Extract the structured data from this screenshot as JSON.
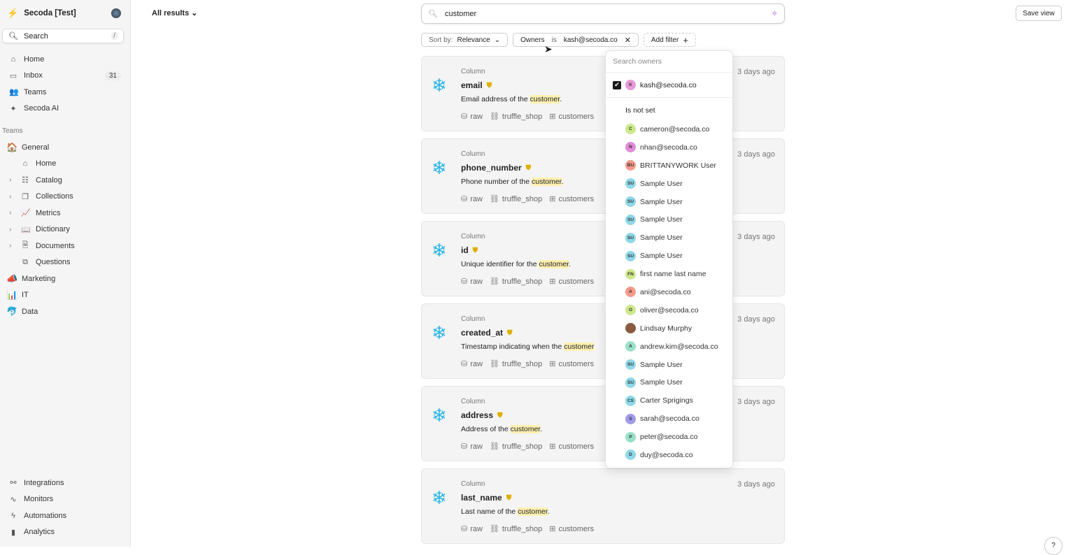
{
  "workspace": {
    "name": "Secoda [Test]"
  },
  "sidebar": {
    "search_label": "Search",
    "search_shortcut": "/",
    "items": [
      {
        "label": "Home",
        "icon": "home-icon",
        "glyph": "⌂"
      },
      {
        "label": "Inbox",
        "icon": "inbox-icon",
        "glyph": "▭",
        "badge": "31"
      },
      {
        "label": "Teams",
        "icon": "users-icon",
        "glyph": "👥"
      },
      {
        "label": "Secoda AI",
        "icon": "sparkles-icon",
        "glyph": "✦"
      }
    ],
    "section_label": "Teams",
    "teams": [
      {
        "label": "General",
        "emoji": "🏠",
        "children": [
          {
            "label": "Home",
            "icon": "home-icon",
            "glyph": "⌂",
            "expandable": false
          },
          {
            "label": "Catalog",
            "icon": "catalog-icon",
            "glyph": "☷",
            "expandable": true
          },
          {
            "label": "Collections",
            "icon": "collections-icon",
            "glyph": "❐",
            "expandable": true
          },
          {
            "label": "Metrics",
            "icon": "metrics-icon",
            "glyph": "📈",
            "expandable": true
          },
          {
            "label": "Dictionary",
            "icon": "book-icon",
            "glyph": "📖",
            "expandable": true
          },
          {
            "label": "Documents",
            "icon": "document-icon",
            "glyph": "🗎",
            "expandable": true
          },
          {
            "label": "Questions",
            "icon": "questions-icon",
            "glyph": "⧉",
            "expandable": false
          }
        ]
      },
      {
        "label": "Marketing",
        "emoji": "📣"
      },
      {
        "label": "IT",
        "emoji": "📊"
      },
      {
        "label": "Data",
        "emoji": "🐬"
      }
    ],
    "bottom": [
      {
        "label": "Integrations",
        "icon": "integrations-icon",
        "glyph": "⚯"
      },
      {
        "label": "Monitors",
        "icon": "activity-icon",
        "glyph": "∿"
      },
      {
        "label": "Automations",
        "icon": "bolt-icon",
        "glyph": "ϟ"
      },
      {
        "label": "Analytics",
        "icon": "analytics-icon",
        "glyph": "▮"
      }
    ]
  },
  "header": {
    "view_selector": "All results",
    "search_value": "customer",
    "save_view": "Save view"
  },
  "filters": {
    "sort_prefix": "Sort by:",
    "sort_value": "Relevance",
    "owner_field": "Owners",
    "owner_op": "is",
    "owner_value": "kash@secoda.co",
    "add_filter": "Add filter"
  },
  "results": [
    {
      "type": "Column",
      "name": "email",
      "desc_pre": "Email address of the ",
      "highlight": "customer",
      "desc_post": ".",
      "database": "raw",
      "schema": "truffle_shop",
      "table": "customers",
      "time": "3 days ago"
    },
    {
      "type": "Column",
      "name": "phone_number",
      "desc_pre": "Phone number of the ",
      "highlight": "customer",
      "desc_post": ".",
      "database": "raw",
      "schema": "truffle_shop",
      "table": "customers",
      "time": "3 days ago"
    },
    {
      "type": "Column",
      "name": "id",
      "desc_pre": "Unique identifier for the ",
      "highlight": "customer",
      "desc_post": ".",
      "database": "raw",
      "schema": "truffle_shop",
      "table": "customers",
      "time": "3 days ago"
    },
    {
      "type": "Column",
      "name": "created_at",
      "desc_pre": "Timestamp indicating when the ",
      "highlight": "customer",
      "desc_post": "",
      "database": "raw",
      "schema": "truffle_shop",
      "table": "customers",
      "time": "3 days ago"
    },
    {
      "type": "Column",
      "name": "address",
      "desc_pre": "Address of the ",
      "highlight": "customer",
      "desc_post": ".",
      "database": "raw",
      "schema": "truffle_shop",
      "table": "customers",
      "time": "3 days ago"
    },
    {
      "type": "Column",
      "name": "last_name",
      "desc_pre": "Last name of the ",
      "highlight": "customer",
      "desc_post": ".",
      "database": "raw",
      "schema": "truffle_shop",
      "table": "customers",
      "time": "3 days ago"
    }
  ],
  "owners_dropdown": {
    "placeholder": "Search owners",
    "selected": {
      "initials": "K",
      "label": "kash@secoda.co",
      "color": "#e89ad8"
    },
    "not_set_label": "Is not set",
    "options": [
      {
        "initials": "C",
        "label": "cameron@secoda.co",
        "color": "#cde88a"
      },
      {
        "initials": "N",
        "label": "nhan@secoda.co",
        "color": "#e08ad8"
      },
      {
        "initials": "BU",
        "label": "BRITTANYWORK User",
        "color": "#f59a8a"
      },
      {
        "initials": "SU",
        "label": "Sample User",
        "color": "#8ed8e8"
      },
      {
        "initials": "SU",
        "label": "Sample User",
        "color": "#8ed8e8"
      },
      {
        "initials": "SU",
        "label": "Sample User",
        "color": "#8ed8e8"
      },
      {
        "initials": "SU",
        "label": "Sample User",
        "color": "#8ed8e8"
      },
      {
        "initials": "SU",
        "label": "Sample User",
        "color": "#8ed8e8"
      },
      {
        "initials": "FN",
        "label": "first name last name",
        "color": "#cde88a"
      },
      {
        "initials": "A",
        "label": "ani@secoda.co",
        "color": "#f59a8a"
      },
      {
        "initials": "O",
        "label": "oliver@secoda.co",
        "color": "#cde88a"
      },
      {
        "initials": "",
        "label": "Lindsay Murphy",
        "color": "#8a5a40"
      },
      {
        "initials": "A",
        "label": "andrew.kim@secoda.co",
        "color": "#9ae0c8"
      },
      {
        "initials": "SU",
        "label": "Sample User",
        "color": "#8ed8e8"
      },
      {
        "initials": "SU",
        "label": "Sample User",
        "color": "#8ed8e8"
      },
      {
        "initials": "CS",
        "label": "Carter Sprigings",
        "color": "#8ed8e8"
      },
      {
        "initials": "S",
        "label": "sarah@secoda.co",
        "color": "#a09ae8"
      },
      {
        "initials": "P",
        "label": "peter@secoda.co",
        "color": "#9ae0c8"
      },
      {
        "initials": "D",
        "label": "duy@secoda.co",
        "color": "#8ed8e8"
      }
    ]
  },
  "help_label": "?"
}
